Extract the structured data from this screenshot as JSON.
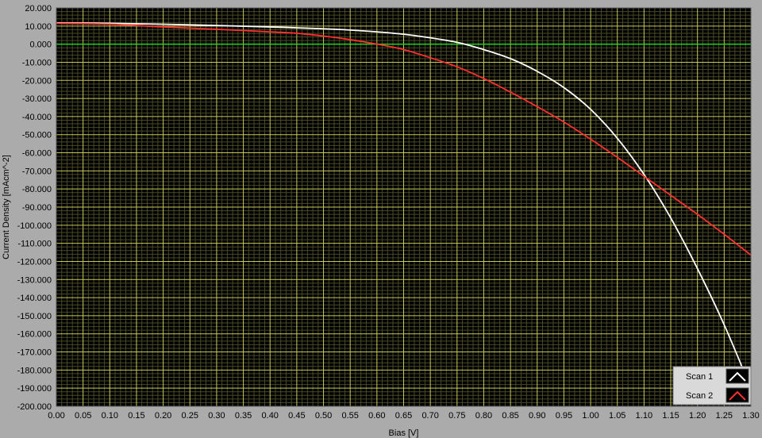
{
  "colors": {
    "window_bg": "#ababab",
    "plot_bg": "#000000",
    "grid_major": "#c8c85a",
    "grid_minor": "#4a4a25",
    "zero_line": "#1ed21e",
    "plot_border": "#5a5a5a",
    "legend_bg": "#d9d9d9"
  },
  "chart_data": {
    "type": "line",
    "xlabel": "Bias [V]",
    "ylabel": "Current Density [mAcm^-2]",
    "xlim": [
      0,
      1.3
    ],
    "ylim": [
      -200,
      20
    ],
    "grid": true,
    "legend_position": "bottom-right",
    "x_ticks": [
      "0.00",
      "0.05",
      "0.10",
      "0.15",
      "0.20",
      "0.25",
      "0.30",
      "0.35",
      "0.40",
      "0.45",
      "0.50",
      "0.55",
      "0.60",
      "0.65",
      "0.70",
      "0.75",
      "0.80",
      "0.85",
      "0.90",
      "0.95",
      "1.00",
      "1.05",
      "1.10",
      "1.15",
      "1.20",
      "1.25",
      "1.30"
    ],
    "y_ticks": [
      "20.000",
      "10.000",
      "0.000",
      "-10.000",
      "-20.000",
      "-30.000",
      "-40.000",
      "-50.000",
      "-60.000",
      "-70.000",
      "-80.000",
      "-90.000",
      "-100.000",
      "-110.000",
      "-120.000",
      "-130.000",
      "-140.000",
      "-150.000",
      "-160.000",
      "-170.000",
      "-180.000",
      "-190.000",
      "-200.000"
    ],
    "zero_line_y": 0,
    "series": [
      {
        "name": "Scan 1",
        "color": "#ffffff",
        "x": [
          0.0,
          0.1,
          0.2,
          0.3,
          0.4,
          0.5,
          0.55,
          0.6,
          0.65,
          0.7,
          0.75,
          0.8,
          0.85,
          0.9,
          0.95,
          1.0,
          1.05,
          1.1,
          1.15,
          1.2,
          1.25,
          1.3
        ],
        "y": [
          11.7,
          11.5,
          11.0,
          10.3,
          9.5,
          8.5,
          7.8,
          6.8,
          5.5,
          3.5,
          1.0,
          -3.0,
          -8.0,
          -15.0,
          -24.0,
          -36.0,
          -52.0,
          -72.0,
          -96.0,
          -124.0,
          -155.0,
          -190.0
        ]
      },
      {
        "name": "Scan 2",
        "color": "#ff3030",
        "x": [
          0.0,
          0.1,
          0.2,
          0.3,
          0.4,
          0.45,
          0.5,
          0.55,
          0.6,
          0.65,
          0.7,
          0.75,
          0.8,
          0.85,
          0.9,
          0.95,
          1.0,
          1.05,
          1.1,
          1.15,
          1.2,
          1.25,
          1.3
        ],
        "y": [
          11.5,
          11.0,
          9.5,
          8.2,
          6.8,
          6.0,
          4.5,
          2.5,
          0.0,
          -3.0,
          -7.5,
          -12.5,
          -19.0,
          -26.5,
          -34.5,
          -43.0,
          -52.5,
          -62.5,
          -73.0,
          -83.5,
          -94.0,
          -105.0,
          -116.5
        ]
      }
    ]
  }
}
